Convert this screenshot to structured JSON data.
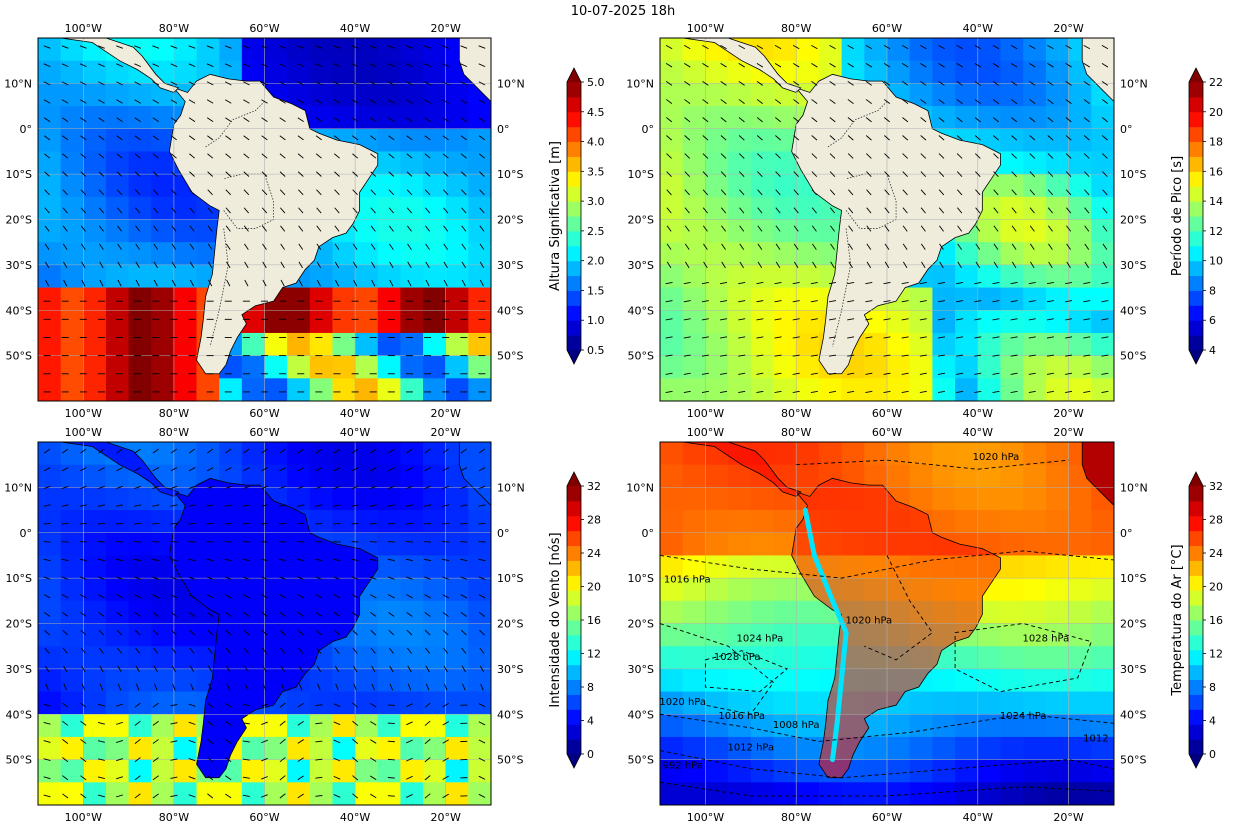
{
  "figure": {
    "title": "10-07-2025 18h"
  },
  "lon_ticks": [
    "100°W",
    "80°W",
    "60°W",
    "40°W",
    "20°W"
  ],
  "lat_ticks": [
    "10°N",
    "0°",
    "10°S",
    "20°S",
    "30°S",
    "40°S",
    "50°S"
  ],
  "panels": [
    {
      "id": "wave-height",
      "colorbar_label": "Altura Significativa [m]",
      "colorbar_ticks": [
        "0.5",
        "1.0",
        "1.5",
        "2.0",
        "2.5",
        "3.0",
        "3.5",
        "4.0",
        "4.5",
        "5.0"
      ],
      "colorbar_range": [
        0.5,
        5.0
      ],
      "colormap": "jet",
      "overlay": "wave direction arrows"
    },
    {
      "id": "peak-period",
      "colorbar_label": "Período de Pico [s]",
      "colorbar_ticks": [
        "4",
        "6",
        "8",
        "10",
        "12",
        "14",
        "16",
        "18",
        "20",
        "22"
      ],
      "colorbar_range": [
        4,
        22
      ],
      "colormap": "jet",
      "overlay": "wave direction arrows"
    },
    {
      "id": "wind-speed",
      "colorbar_label": "Intensidade do Vento [nós]",
      "colorbar_ticks": [
        "0",
        "4",
        "8",
        "12",
        "16",
        "20",
        "24",
        "28",
        "32"
      ],
      "colorbar_range": [
        0,
        32
      ],
      "colormap": "jet",
      "overlay": "wind arrows"
    },
    {
      "id": "air-temperature",
      "colorbar_label": "Temperatura do Ar [°C]",
      "colorbar_ticks": [
        "0",
        "4",
        "8",
        "12",
        "16",
        "20",
        "24",
        "28",
        "32"
      ],
      "colorbar_range": [
        0,
        32
      ],
      "colormap": "jet",
      "overlay": "pressure isobars"
    }
  ],
  "isobar_labels": [
    "1020 hPa",
    "1016 hPa",
    "1024 hPa",
    "1028 hPa",
    "1020 hPa",
    "1028 hPa",
    "1020 hPa",
    "1016 hPa",
    "1008 hPa",
    "1024 hPa",
    "1012",
    "992 hPa",
    "1012 hPa"
  ],
  "colors": {
    "land": "#efecdc",
    "coast": "#000000",
    "grid": "#b0b0b0"
  }
}
